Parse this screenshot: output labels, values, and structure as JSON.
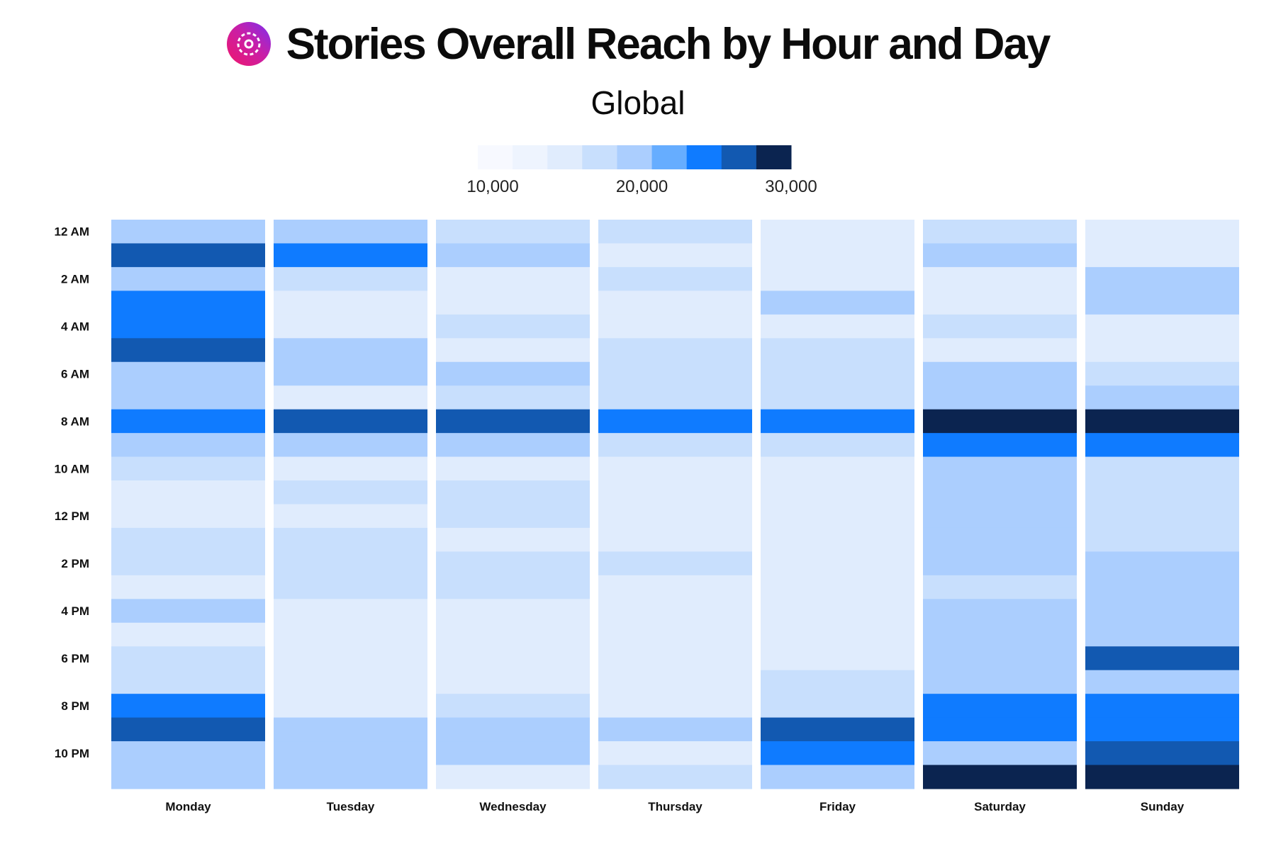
{
  "title": "Stories Overall Reach by Hour and Day",
  "subtitle": "Global",
  "icon": "stories-icon",
  "chart_data": {
    "type": "heatmap",
    "title": "Stories Overall Reach by Hour and Day",
    "subtitle": "Global",
    "x_categories": [
      "Monday",
      "Tuesday",
      "Wednesday",
      "Thursday",
      "Friday",
      "Saturday",
      "Sunday"
    ],
    "y_categories": [
      "12 AM",
      "1 AM",
      "2 AM",
      "3 AM",
      "4 AM",
      "5 AM",
      "6 AM",
      "7 AM",
      "8 AM",
      "9 AM",
      "10 AM",
      "11 AM",
      "12 PM",
      "1 PM",
      "2 PM",
      "3 PM",
      "4 PM",
      "5 PM",
      "6 PM",
      "7 PM",
      "8 PM",
      "9 PM",
      "10 PM",
      "11 PM"
    ],
    "y_tick_labels": [
      "12 AM",
      "2 AM",
      "4 AM",
      "6 AM",
      "8 AM",
      "10 AM",
      "12 PM",
      "2 PM",
      "4 PM",
      "6 PM",
      "8 PM",
      "10 PM"
    ],
    "values": [
      [
        18500,
        27500,
        18500,
        25000,
        23500,
        27500,
        20500,
        20500,
        25000,
        18500,
        16500,
        15000,
        15000,
        16500,
        16500,
        15000,
        18500,
        15000,
        16500,
        16500,
        23500,
        27500,
        18500,
        18500
      ],
      [
        18500,
        25000,
        16500,
        15000,
        15000,
        18500,
        20500,
        15000,
        27500,
        18500,
        15000,
        16500,
        15000,
        16500,
        16500,
        16500,
        15000,
        15000,
        15000,
        15000,
        15000,
        20500,
        20500,
        18500
      ],
      [
        16500,
        18500,
        15000,
        15000,
        16500,
        15000,
        20500,
        16500,
        27500,
        20500,
        15000,
        16500,
        16500,
        15000,
        16500,
        16500,
        15000,
        15000,
        15000,
        15000,
        16500,
        18500,
        18500,
        15000
      ],
      [
        16500,
        15000,
        16500,
        15000,
        15000,
        16500,
        16500,
        16500,
        25000,
        16500,
        15000,
        15000,
        15000,
        15000,
        16500,
        15000,
        15000,
        15000,
        15000,
        15000,
        15000,
        20500,
        15000,
        16500
      ],
      [
        15000,
        15000,
        15000,
        18500,
        15000,
        16500,
        16500,
        16500,
        25000,
        16500,
        15000,
        15000,
        15000,
        15000,
        15000,
        15000,
        15000,
        15000,
        15000,
        16500,
        16500,
        27500,
        23500,
        18500
      ],
      [
        16500,
        18500,
        15000,
        15000,
        16500,
        15000,
        18500,
        18500,
        29500,
        23500,
        18500,
        18500,
        18500,
        20500,
        18500,
        16500,
        18500,
        18500,
        20500,
        20500,
        23500,
        23500,
        18500,
        29500
      ],
      [
        15000,
        15000,
        20500,
        20500,
        15000,
        15000,
        16500,
        18500,
        29500,
        25000,
        16500,
        16500,
        16500,
        16500,
        18500,
        20500,
        18500,
        18500,
        27500,
        20500,
        23500,
        25000,
        27500,
        29500
      ]
    ],
    "colorbar": {
      "min": 9000,
      "max": 30000,
      "tick_labels": [
        "10,000",
        "20,000",
        "30,000"
      ],
      "colors": [
        "#f7f9ff",
        "#eef4fe",
        "#e0ecfd",
        "#c8dffd",
        "#abcefe",
        "#66adff",
        "#0f7bff",
        "#1259b1",
        "#0b2450"
      ]
    },
    "grid": false,
    "legend_position": "top-center"
  }
}
